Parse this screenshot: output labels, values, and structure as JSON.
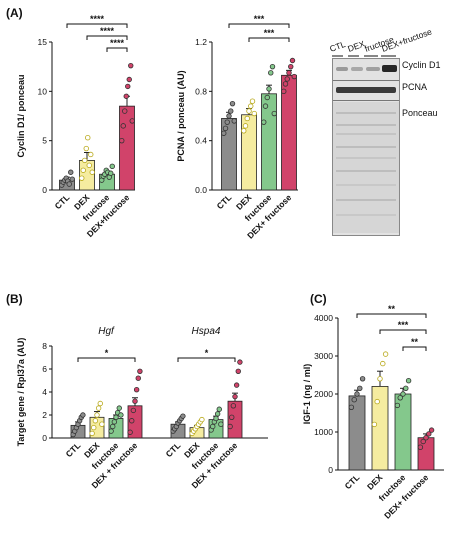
{
  "colors": {
    "ctl": "#8c8c8c",
    "dex": "#f5eca0",
    "fructose": "#84c88c",
    "dexfructose": "#d1436a"
  },
  "chart_data": [
    {
      "panel": "(A)",
      "type": "bar",
      "ylabel": "Cyclin D1/ ponceau",
      "ylim": [
        0,
        15
      ],
      "yticks": [
        "0",
        "5",
        "10",
        "15"
      ],
      "categories": [
        "CTL",
        "DEX",
        "fructose",
        "DEX+fructose"
      ],
      "values": [
        1.0,
        3.0,
        1.6,
        8.5
      ],
      "errors": [
        0.3,
        0.8,
        0.3,
        1.0
      ],
      "points": [
        [
          0.5,
          0.8,
          1.0,
          1.2,
          0.9,
          0.6,
          1.8,
          1.1
        ],
        [
          1.2,
          2.0,
          3.0,
          4.2,
          5.3,
          2.5,
          3.6,
          1.8
        ],
        [
          1.0,
          1.4,
          1.6,
          2.0,
          1.8,
          1.3,
          1.7,
          2.4
        ],
        [
          5.0,
          6.5,
          8.0,
          9.5,
          10.5,
          11.2,
          12.6,
          7.0
        ]
      ],
      "significance": [
        "****",
        "****",
        "****"
      ]
    },
    {
      "panel": "(A)",
      "type": "bar",
      "ylabel": "PCNA / ponceau (AU)",
      "ylim": [
        0,
        1.2
      ],
      "yticks": [
        "0.0",
        "0.4",
        "0.8",
        "1.2"
      ],
      "categories": [
        "CTL",
        "DEX",
        "fructose",
        "DEX+ fructose"
      ],
      "values": [
        0.58,
        0.61,
        0.78,
        0.93
      ],
      "errors": [
        0.05,
        0.05,
        0.07,
        0.04
      ],
      "points": [
        [
          0.46,
          0.5,
          0.55,
          0.6,
          0.64,
          0.7,
          0.56
        ],
        [
          0.48,
          0.52,
          0.58,
          0.64,
          0.68,
          0.72,
          0.62
        ],
        [
          0.55,
          0.68,
          0.75,
          0.82,
          0.95,
          1.0,
          0.62
        ],
        [
          0.8,
          0.86,
          0.9,
          0.95,
          1.0,
          1.05,
          0.92
        ]
      ],
      "significance": [
        "***",
        "***"
      ]
    },
    {
      "panel": "(B)",
      "type": "bar",
      "ylabel": "Target gene / Rpl37a (AU)",
      "ylim": [
        0,
        8
      ],
      "yticks": [
        "0",
        "2",
        "4",
        "6",
        "8"
      ],
      "group_labels": [
        "Hgf",
        "Hspa4"
      ],
      "categories": [
        "CTL",
        "DEX",
        "fructose",
        "DEX + fructose"
      ],
      "series": [
        {
          "name": "Hgf",
          "values": [
            1.1,
            1.8,
            1.7,
            2.8
          ],
          "errors": [
            0.3,
            0.5,
            0.3,
            0.7
          ],
          "points": [
            [
              0.3,
              0.6,
              0.9,
              1.2,
              1.5,
              1.8,
              2.0
            ],
            [
              0.4,
              0.9,
              1.5,
              2.0,
              2.6,
              3.0,
              1.2
            ],
            [
              0.6,
              1.0,
              1.4,
              1.8,
              2.2,
              2.6,
              2.0
            ],
            [
              0.5,
              1.5,
              2.4,
              3.2,
              4.2,
              5.2,
              5.8
            ]
          ]
        },
        {
          "name": "Hspa4",
          "values": [
            1.2,
            0.9,
            1.6,
            3.2
          ],
          "errors": [
            0.2,
            0.2,
            0.3,
            0.7
          ],
          "points": [
            [
              0.6,
              0.8,
              1.0,
              1.3,
              1.5,
              1.7,
              1.9
            ],
            [
              0.4,
              0.6,
              0.8,
              1.0,
              1.2,
              1.4,
              1.6
            ],
            [
              0.7,
              1.0,
              1.4,
              1.7,
              2.1,
              2.5,
              1.2
            ],
            [
              1.0,
              1.8,
              2.8,
              3.6,
              4.6,
              5.8,
              6.6
            ]
          ]
        }
      ],
      "significance": [
        "*",
        "*"
      ]
    },
    {
      "panel": "(C)",
      "type": "bar",
      "ylabel": "IGF-1 (ng / ml)",
      "ylim": [
        0,
        4000
      ],
      "yticks": [
        "0",
        "1000",
        "2000",
        "3000",
        "4000"
      ],
      "categories": [
        "CTL",
        "DEX",
        "fructose",
        "DEX+ fructose"
      ],
      "values": [
        1950,
        2200,
        2000,
        850
      ],
      "errors": [
        150,
        400,
        150,
        100
      ],
      "points": [
        [
          1650,
          1850,
          2000,
          2150,
          2400
        ],
        [
          1200,
          1800,
          2400,
          2800,
          3050
        ],
        [
          1700,
          1900,
          2000,
          2150,
          2350
        ],
        [
          600,
          750,
          850,
          950,
          1050
        ]
      ],
      "significance": [
        "**",
        "***",
        "**"
      ]
    }
  ],
  "blot": {
    "lanes": [
      "CTL",
      "DEX",
      "fructose",
      "DEX+fructose"
    ],
    "rows": [
      "Cyclin D1",
      "PCNA",
      "Ponceau"
    ]
  },
  "panel_labels": [
    "(A)",
    "(B)",
    "(C)"
  ]
}
